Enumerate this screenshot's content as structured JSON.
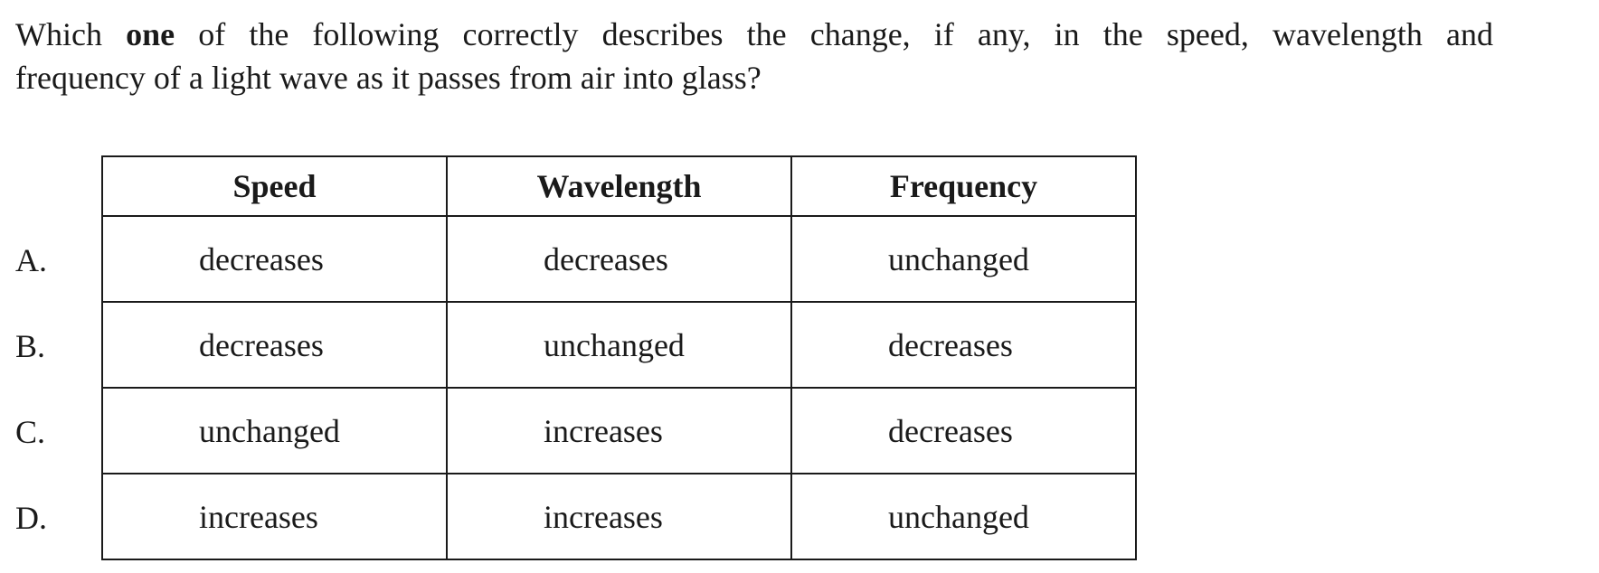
{
  "question": {
    "line1_pre": "Which ",
    "line1_bold": "one",
    "line1_post": " of the following correctly describes the change, if any, in the speed, wavelength and",
    "line2": "frequency of a light wave as it passes from air into glass?"
  },
  "table": {
    "headers": [
      "Speed",
      "Wavelength",
      "Frequency"
    ],
    "rows": [
      {
        "letter": "A.",
        "cells": [
          "decreases",
          "decreases",
          "unchanged"
        ]
      },
      {
        "letter": "B.",
        "cells": [
          "decreases",
          "unchanged",
          "decreases"
        ]
      },
      {
        "letter": "C.",
        "cells": [
          "unchanged",
          "increases",
          "decreases"
        ]
      },
      {
        "letter": "D.",
        "cells": [
          "increases",
          "increases",
          "unchanged"
        ]
      }
    ]
  }
}
